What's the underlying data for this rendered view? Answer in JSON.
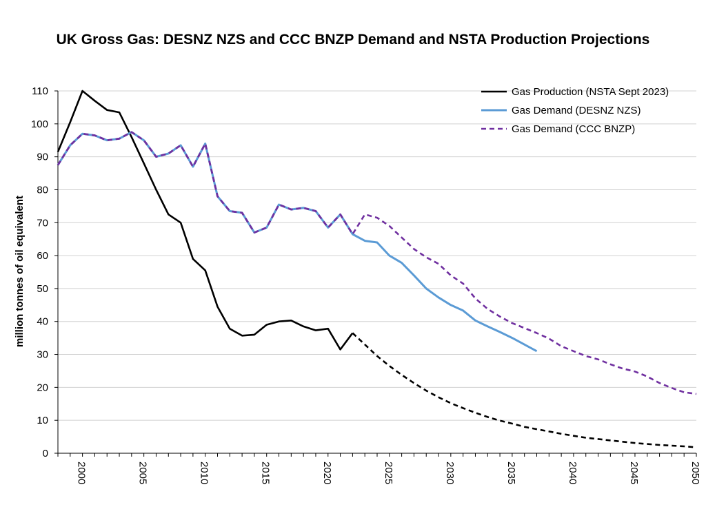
{
  "chart_data": {
    "type": "line",
    "title": "UK Gross Gas: DESNZ NZS and CCC BNZP Demand and NSTA Production Projections",
    "xlabel": "",
    "ylabel": "million tonnes of oil equivalent",
    "xlim": [
      1998,
      2050
    ],
    "ylim": [
      0,
      110
    ],
    "yticks": [
      "0",
      "10",
      "20",
      "30",
      "40",
      "50",
      "60",
      "70",
      "80",
      "90",
      "100",
      "110"
    ],
    "xticks": [
      "2000",
      "2005",
      "2010",
      "2015",
      "2020",
      "2025",
      "2030",
      "2035",
      "2040",
      "2045",
      "2050"
    ],
    "grid": "horizontal",
    "legend_position": "top-right",
    "series": [
      {
        "name": "Gas Production (NSTA Sept 2023)",
        "color": "#000000",
        "style": "solid-then-dashed",
        "dash_from_year": 2022,
        "x": [
          1998,
          1999,
          2000,
          2001,
          2002,
          2003,
          2004,
          2005,
          2006,
          2007,
          2008,
          2009,
          2010,
          2011,
          2012,
          2013,
          2014,
          2015,
          2016,
          2017,
          2018,
          2019,
          2020,
          2021,
          2022,
          2023,
          2024,
          2025,
          2026,
          2027,
          2028,
          2029,
          2030,
          2031,
          2032,
          2033,
          2034,
          2035,
          2036,
          2037,
          2038,
          2039,
          2040,
          2041,
          2042,
          2043,
          2044,
          2045,
          2046,
          2047,
          2048,
          2049,
          2050
        ],
        "y": [
          91.5,
          100.5,
          110,
          107,
          104.2,
          103.5,
          96,
          88,
          80,
          72.5,
          70,
          59,
          55.5,
          44.5,
          37.8,
          35.7,
          36,
          39,
          40,
          40.3,
          38.5,
          37.3,
          37.8,
          31.5,
          36.5,
          33,
          29.5,
          26.5,
          23.8,
          21.3,
          19,
          17,
          15.2,
          13.7,
          12.3,
          11,
          9.9,
          9,
          8,
          7.3,
          6.6,
          5.9,
          5.3,
          4.7,
          4.3,
          3.9,
          3.5,
          3.1,
          2.8,
          2.5,
          2.3,
          2.1,
          1.8
        ]
      },
      {
        "name": "Gas Demand (DESNZ NZS)",
        "color": "#5B9BD5",
        "style": "solid",
        "x": [
          1998,
          1999,
          2000,
          2001,
          2002,
          2003,
          2004,
          2005,
          2006,
          2007,
          2008,
          2009,
          2010,
          2011,
          2012,
          2013,
          2014,
          2015,
          2016,
          2017,
          2018,
          2019,
          2020,
          2021,
          2022,
          2023,
          2024,
          2025,
          2026,
          2027,
          2028,
          2029,
          2030,
          2031,
          2032,
          2033,
          2034,
          2035,
          2036,
          2037
        ],
        "y": [
          87.5,
          93.5,
          97,
          96.5,
          95,
          95.5,
          97.5,
          95,
          90,
          91,
          93.5,
          87,
          94,
          78,
          73.5,
          73,
          67,
          68.5,
          75.5,
          74,
          74.5,
          73.5,
          68.5,
          72.5,
          66.5,
          64.5,
          64,
          60,
          57.8,
          54,
          50,
          47.3,
          45,
          43.3,
          40.3,
          38.5,
          36.8,
          35,
          33,
          31
        ]
      },
      {
        "name": "Gas Demand (CCC BNZP)",
        "color": "#7030A0",
        "style": "dashed",
        "x": [
          1998,
          1999,
          2000,
          2001,
          2002,
          2003,
          2004,
          2005,
          2006,
          2007,
          2008,
          2009,
          2010,
          2011,
          2012,
          2013,
          2014,
          2015,
          2016,
          2017,
          2018,
          2019,
          2020,
          2021,
          2022,
          2023,
          2024,
          2025,
          2026,
          2027,
          2028,
          2029,
          2030,
          2031,
          2032,
          2033,
          2034,
          2035,
          2036,
          2037,
          2038,
          2039,
          2040,
          2041,
          2042,
          2043,
          2044,
          2045,
          2046,
          2047,
          2048,
          2049,
          2050
        ],
        "y": [
          87.5,
          93.5,
          97,
          96.5,
          95,
          95.5,
          97.5,
          95,
          90,
          91,
          93.5,
          87,
          94,
          78,
          73.5,
          73,
          67,
          68.5,
          75.5,
          74,
          74.5,
          73.5,
          68.5,
          72.5,
          66.5,
          72.5,
          71.5,
          69,
          65.5,
          62,
          59.5,
          57.5,
          54,
          51.5,
          47,
          43.8,
          41.5,
          39.5,
          38,
          36.5,
          34.8,
          32.5,
          31,
          29.5,
          28.5,
          27,
          25.7,
          24.8,
          23.3,
          21.3,
          19.8,
          18.5,
          18
        ]
      }
    ]
  }
}
